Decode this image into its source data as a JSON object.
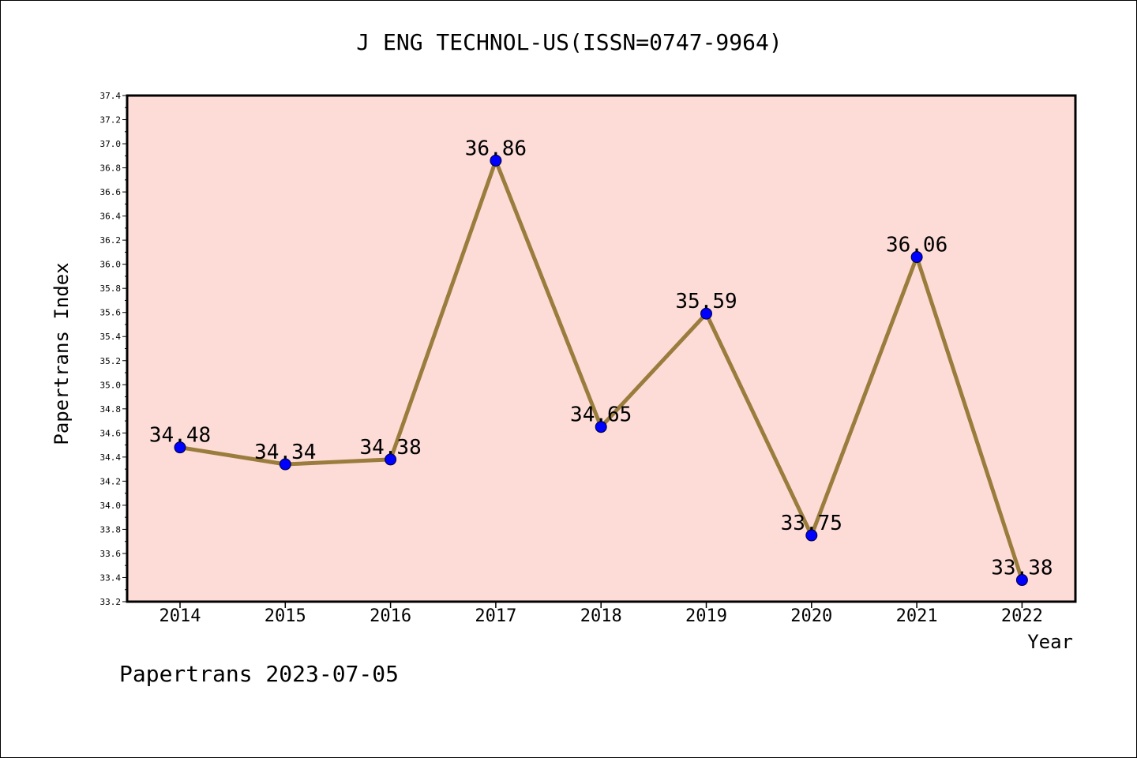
{
  "chart_data": {
    "type": "line",
    "title": "J ENG TECHNOL-US(ISSN=0747-9964)",
    "xlabel": "Year",
    "ylabel": "Papertrans Index",
    "categories": [
      "2014",
      "2015",
      "2016",
      "2017",
      "2018",
      "2019",
      "2020",
      "2021",
      "2022"
    ],
    "series": [
      {
        "values": [
          34.48,
          34.34,
          34.38,
          36.86,
          34.65,
          35.59,
          33.75,
          36.06,
          33.38
        ],
        "data_labels": [
          "34.48",
          "34.34",
          "34.38",
          "36.86",
          "34.65",
          "35.59",
          "33.75",
          "36.06",
          "33.38"
        ]
      }
    ],
    "ylim": [
      33.2,
      37.4
    ],
    "yticks": [
      "33.2",
      "33.4",
      "33.6",
      "33.8",
      "34.0",
      "34.2",
      "34.4",
      "34.6",
      "34.8",
      "35.0",
      "35.2",
      "35.4",
      "35.6",
      "35.8",
      "36.0",
      "36.2",
      "36.4",
      "36.6",
      "36.8",
      "37.0",
      "37.2",
      "37.4"
    ],
    "grid": false,
    "colors": {
      "plot_background": "#fddcd8",
      "line": "#9a7d3d",
      "marker": "#0000ff"
    }
  },
  "footer": "Papertrans 2023-07-05"
}
